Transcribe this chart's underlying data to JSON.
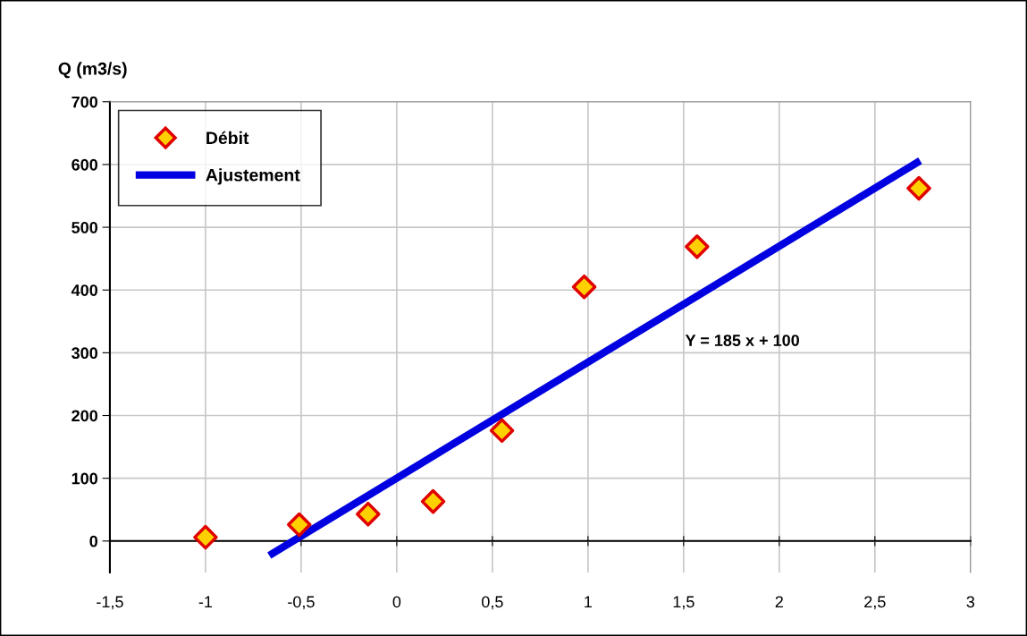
{
  "chart_data": {
    "type": "scatter",
    "ylabel": "Q (m3/s)",
    "series": [
      {
        "name": "Débit",
        "color": "#e00000",
        "marker": "diamond",
        "x": [
          -1.0,
          -0.51,
          -0.15,
          0.19,
          0.55,
          0.98,
          1.57,
          2.73
        ],
        "values": [
          6,
          26,
          43,
          63,
          176,
          405,
          469,
          562
        ]
      },
      {
        "name": "Ajustement",
        "type": "line",
        "color": "#0000e0",
        "marker": "none",
        "line_style": "solid",
        "x": [
          -0.65,
          2.72
        ],
        "values": [
          -20,
          603
        ]
      }
    ],
    "xlim": [
      -1.5,
      3
    ],
    "ylim": [
      -50,
      700
    ],
    "xticks": [
      {
        "value": -1.5,
        "label": "-1,5"
      },
      -1,
      {
        "value": -0.5,
        "label": "-0,5"
      },
      0,
      {
        "value": 0.5,
        "label": "0,5"
      },
      1,
      {
        "value": 1.5,
        "label": "1,5"
      },
      2,
      {
        "value": 2.5,
        "label": "2,5"
      },
      3
    ],
    "yticks": [
      0,
      100,
      200,
      300,
      400,
      500,
      600,
      700
    ],
    "grid": true,
    "legend": "top left",
    "annotations": [
      "Y = 185 x + 100"
    ]
  }
}
